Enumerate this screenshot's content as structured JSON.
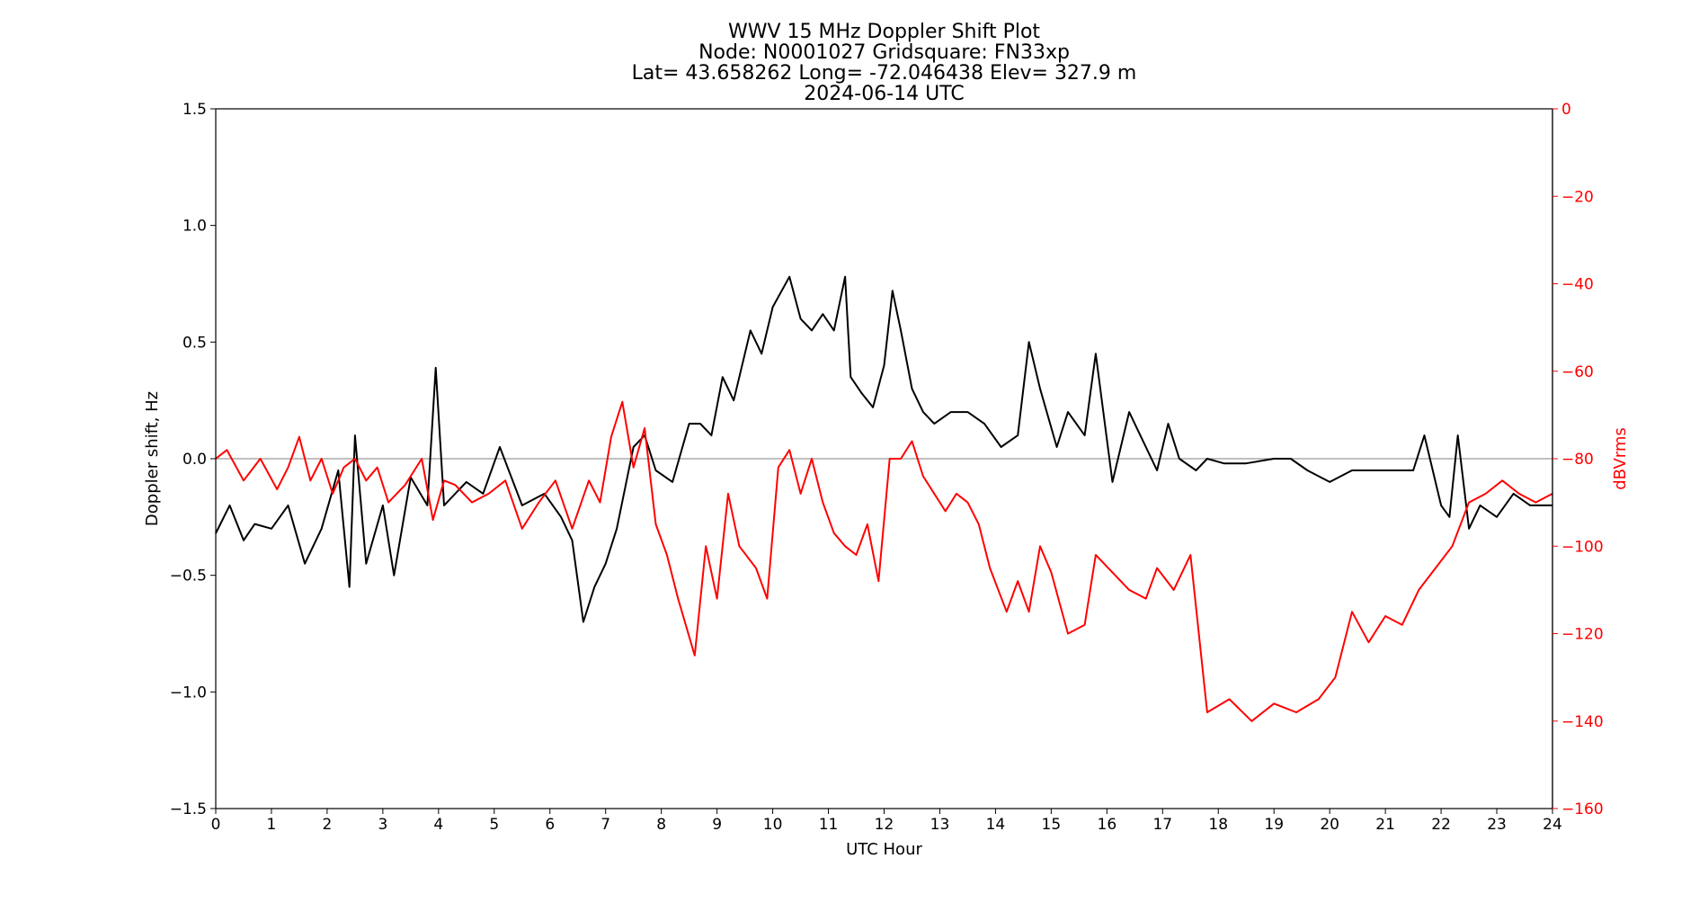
{
  "chart_data": {
    "type": "line",
    "title_lines": [
      "WWV 15 MHz Doppler Shift Plot",
      "Node:  N0001027     Gridsquare:  FN33xp",
      "Lat=   43.658262    Long= -72.046438    Elev= 327.9 m",
      "2024-06-14  UTC"
    ],
    "xlabel": "UTC Hour",
    "ylabel": "Doppler shift, Hz",
    "y2label": "dBVrms",
    "xlim": [
      0,
      24
    ],
    "ylim": [
      -1.5,
      1.5
    ],
    "y2lim": [
      -160,
      0
    ],
    "x_ticks": [
      "0",
      "1",
      "2",
      "3",
      "4",
      "5",
      "6",
      "7",
      "8",
      "9",
      "10",
      "11",
      "12",
      "13",
      "14",
      "15",
      "16",
      "17",
      "18",
      "19",
      "20",
      "21",
      "22",
      "23",
      "24"
    ],
    "y_ticks": [
      "1.5",
      "1.0",
      "0.5",
      "0.0",
      "−0.5",
      "−1.0",
      "−1.5"
    ],
    "y2_ticks": [
      "0",
      "−20",
      "−40",
      "−60",
      "−80",
      "−100",
      "−120",
      "−140",
      "−160"
    ],
    "zero_line": 0.0,
    "grid": false,
    "colors": {
      "doppler": "#000000",
      "power": "#ff0000",
      "zero_line": "#999999",
      "y2_axis": "#ff0000"
    },
    "series": [
      {
        "axis": "left",
        "x": [
          0,
          0.25,
          0.5,
          0.7,
          1,
          1.3,
          1.6,
          1.9,
          2.2,
          2.4,
          2.5,
          2.7,
          3,
          3.2,
          3.5,
          3.8,
          3.95,
          4.1,
          4.5,
          4.8,
          5.1,
          5.5,
          5.9,
          6.2,
          6.4,
          6.6,
          6.8,
          7,
          7.2,
          7.5,
          7.7,
          7.9,
          8.2,
          8.5,
          8.7,
          8.9,
          9.1,
          9.3,
          9.6,
          9.8,
          10,
          10.3,
          10.5,
          10.7,
          10.9,
          11.1,
          11.3,
          11.4,
          11.6,
          11.8,
          12,
          12.15,
          12.3,
          12.5,
          12.7,
          12.9,
          13.2,
          13.5,
          13.8,
          14.1,
          14.4,
          14.6,
          14.8,
          15.1,
          15.3,
          15.6,
          15.8,
          16.1,
          16.4,
          16.7,
          16.9,
          17.1,
          17.3,
          17.6,
          17.8,
          18.1,
          18.5,
          19,
          19.3,
          19.6,
          20,
          20.4,
          20.8,
          21.2,
          21.5,
          21.7,
          22,
          22.15,
          22.3,
          22.5,
          22.7,
          23,
          23.3,
          23.6,
          24
        ],
        "y": [
          -0.32,
          -0.2,
          -0.35,
          -0.28,
          -0.3,
          -0.2,
          -0.45,
          -0.3,
          -0.05,
          -0.55,
          0.1,
          -0.45,
          -0.2,
          -0.5,
          -0.08,
          -0.2,
          0.39,
          -0.2,
          -0.1,
          -0.15,
          0.05,
          -0.2,
          -0.15,
          -0.25,
          -0.35,
          -0.7,
          -0.55,
          -0.45,
          -0.3,
          0.05,
          0.1,
          -0.05,
          -0.1,
          0.15,
          0.15,
          0.1,
          0.35,
          0.25,
          0.55,
          0.45,
          0.65,
          0.78,
          0.6,
          0.55,
          0.62,
          0.55,
          0.78,
          0.35,
          0.28,
          0.22,
          0.4,
          0.72,
          0.55,
          0.3,
          0.2,
          0.15,
          0.2,
          0.2,
          0.15,
          0.05,
          0.1,
          0.5,
          0.3,
          0.05,
          0.2,
          0.1,
          0.45,
          -0.1,
          0.2,
          0.05,
          -0.05,
          0.15,
          0.0,
          -0.05,
          0.0,
          -0.02,
          -0.02,
          0.0,
          0.0,
          -0.05,
          -0.1,
          -0.05,
          -0.05,
          -0.05,
          -0.05,
          0.1,
          -0.2,
          -0.25,
          0.1,
          -0.3,
          -0.2,
          -0.25,
          -0.15,
          -0.2,
          -0.2
        ],
        "color": "#000000"
      },
      {
        "axis": "right",
        "x": [
          0,
          0.2,
          0.5,
          0.8,
          1.1,
          1.3,
          1.5,
          1.7,
          1.9,
          2.1,
          2.3,
          2.5,
          2.7,
          2.9,
          3.1,
          3.4,
          3.7,
          3.9,
          4.1,
          4.3,
          4.6,
          4.9,
          5.2,
          5.5,
          5.8,
          6.1,
          6.4,
          6.7,
          6.9,
          7.1,
          7.3,
          7.5,
          7.7,
          7.9,
          8.1,
          8.3,
          8.6,
          8.8,
          9,
          9.2,
          9.4,
          9.7,
          9.9,
          10.1,
          10.3,
          10.5,
          10.7,
          10.9,
          11.1,
          11.3,
          11.5,
          11.7,
          11.9,
          12.1,
          12.3,
          12.5,
          12.7,
          12.9,
          13.1,
          13.3,
          13.5,
          13.7,
          13.9,
          14.2,
          14.4,
          14.6,
          14.8,
          15,
          15.3,
          15.6,
          15.8,
          16.1,
          16.4,
          16.7,
          16.9,
          17.2,
          17.5,
          17.8,
          18.2,
          18.6,
          19,
          19.4,
          19.8,
          20.1,
          20.4,
          20.7,
          21,
          21.3,
          21.6,
          21.9,
          22.2,
          22.5,
          22.8,
          23.1,
          23.4,
          23.7,
          24
        ],
        "y": [
          -80,
          -78,
          -85,
          -80,
          -87,
          -82,
          -75,
          -85,
          -80,
          -88,
          -82,
          -80,
          -85,
          -82,
          -90,
          -86,
          -80,
          -94,
          -85,
          -86,
          -90,
          -88,
          -85,
          -96,
          -90,
          -85,
          -96,
          -85,
          -90,
          -75,
          -67,
          -82,
          -73,
          -95,
          -102,
          -112,
          -125,
          -100,
          -112,
          -88,
          -100,
          -105,
          -112,
          -82,
          -78,
          -88,
          -80,
          -90,
          -97,
          -100,
          -102,
          -95,
          -108,
          -80,
          -80,
          -76,
          -84,
          -88,
          -92,
          -88,
          -90,
          -95,
          -105,
          -115,
          -108,
          -115,
          -100,
          -106,
          -120,
          -118,
          -102,
          -106,
          -110,
          -112,
          -105,
          -110,
          -102,
          -138,
          -135,
          -140,
          -136,
          -138,
          -135,
          -130,
          -115,
          -122,
          -116,
          -118,
          -110,
          -105,
          -100,
          -90,
          -88,
          -85,
          -88,
          -90,
          -88
        ],
        "color": "#ff0000"
      }
    ]
  }
}
